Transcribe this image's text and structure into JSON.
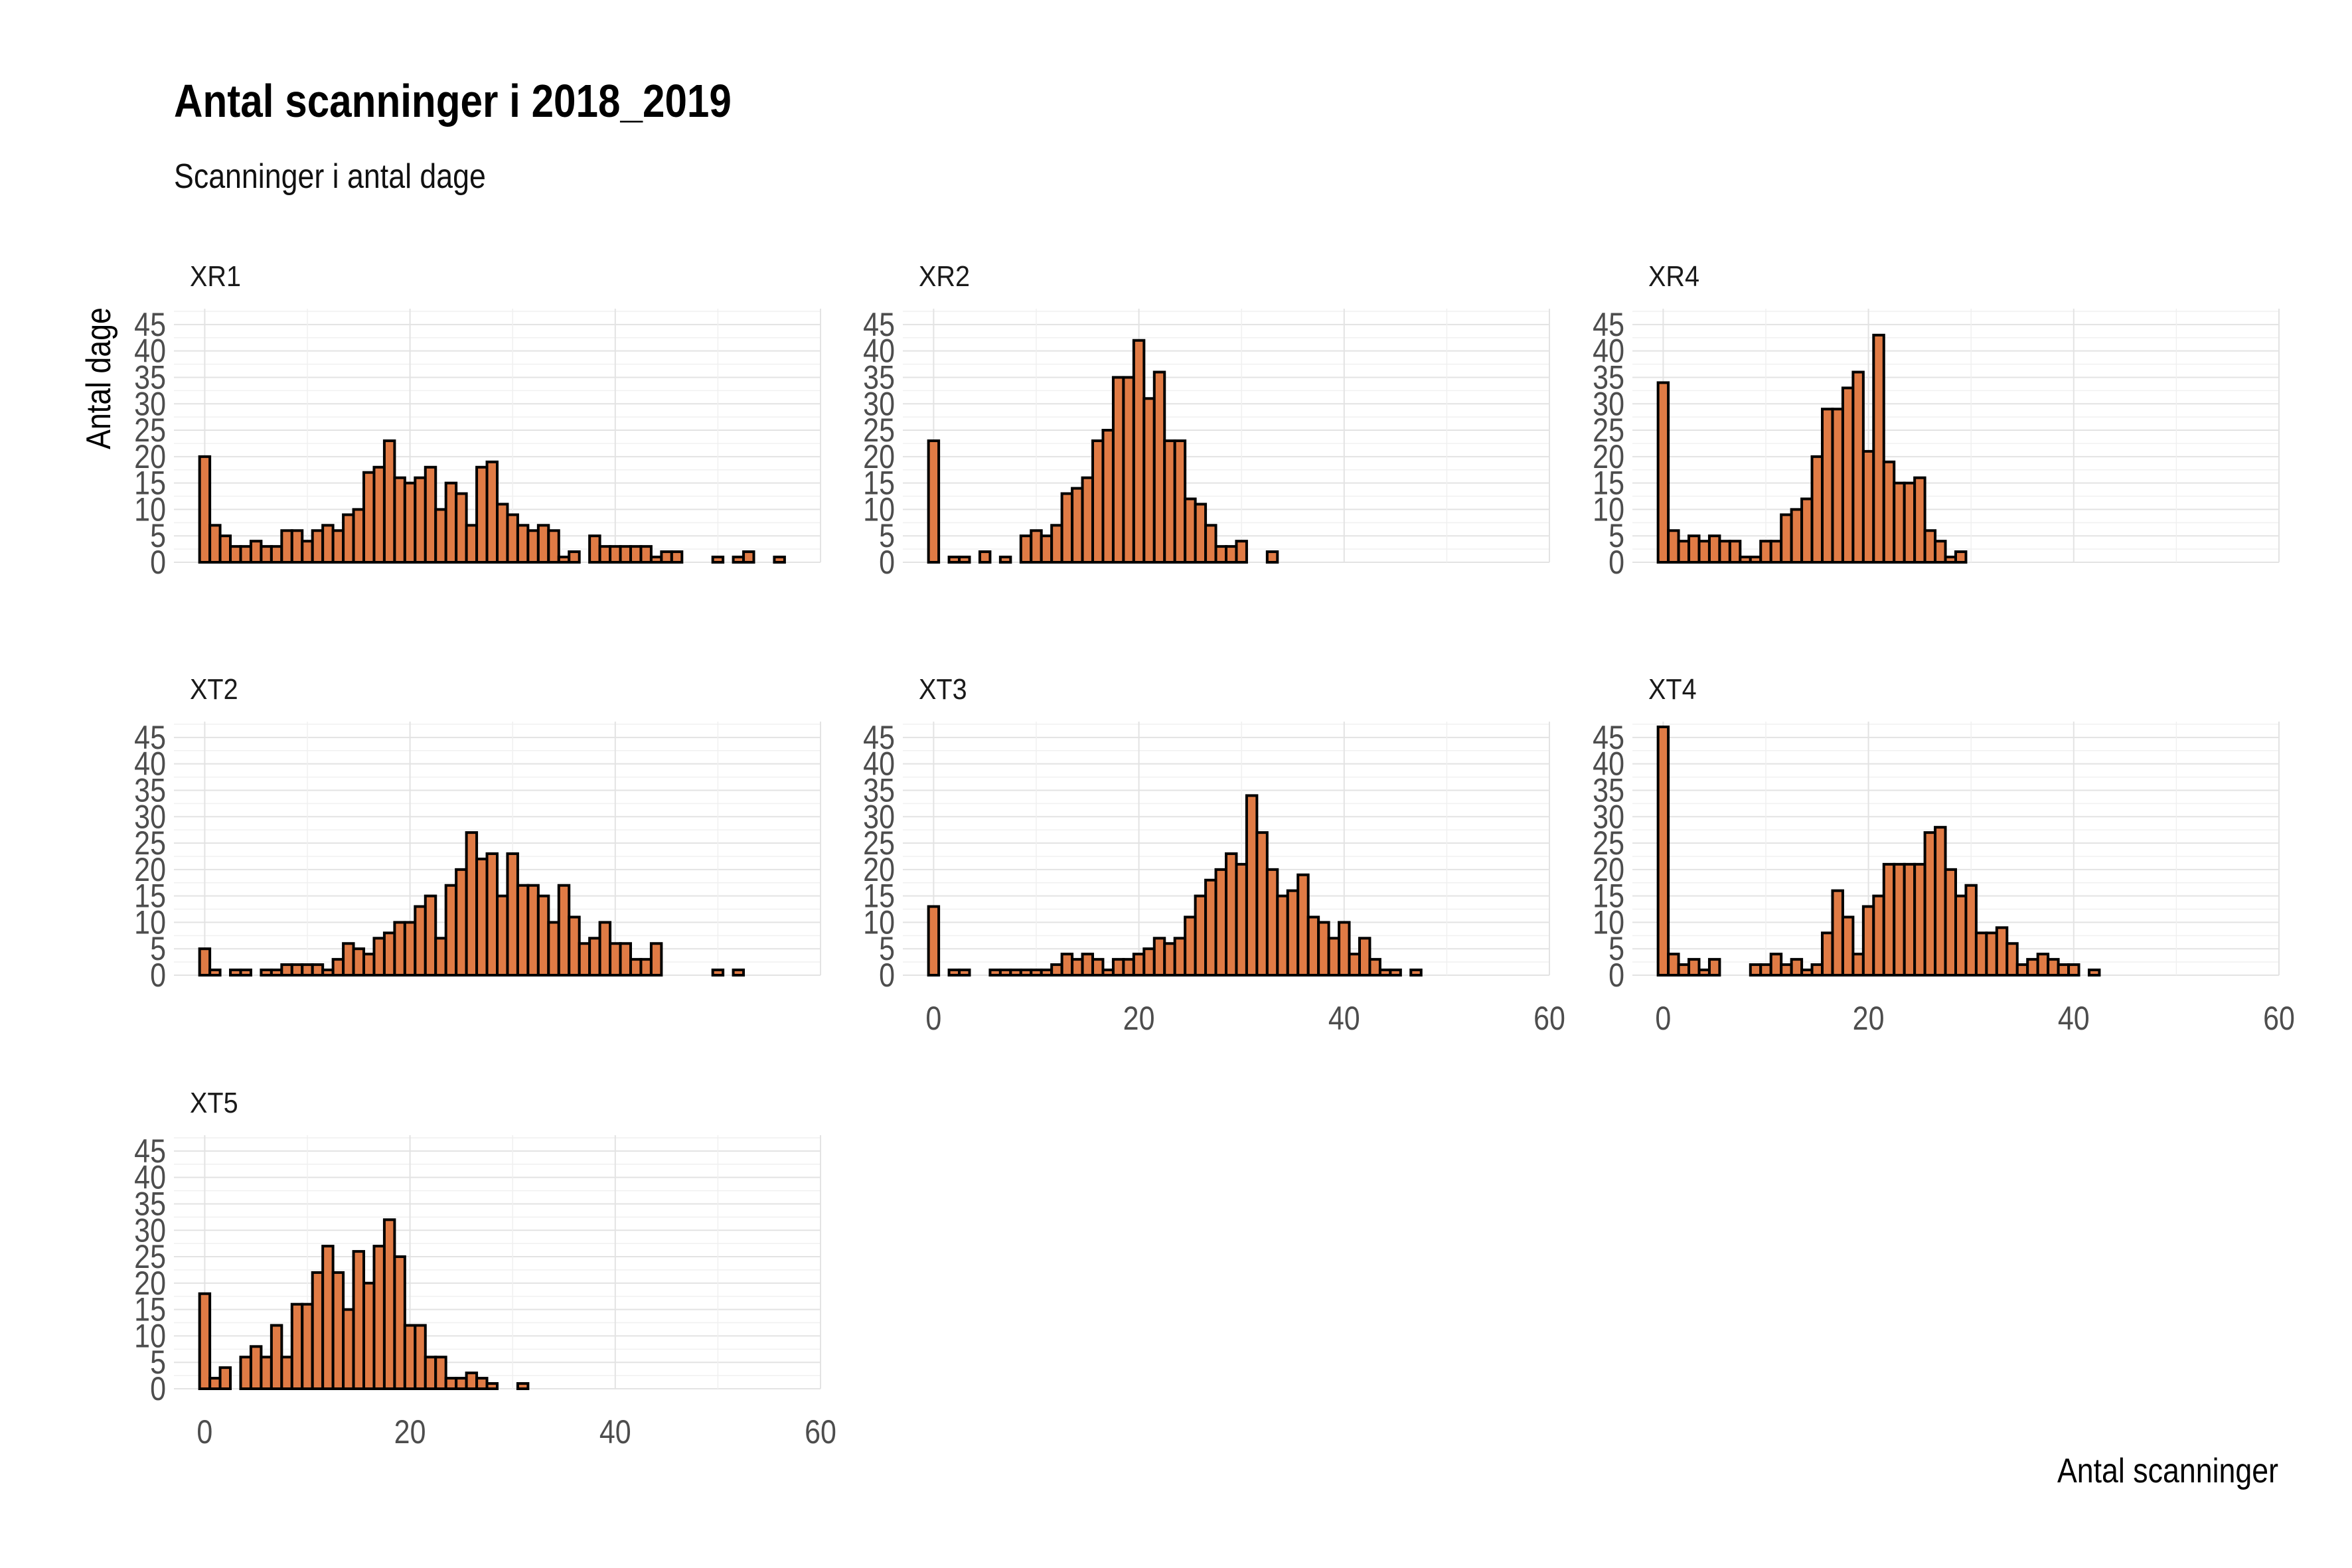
{
  "chart_data": {
    "type": "bar",
    "title": "Antal scanninger i 2018_2019",
    "subtitle": "Scanninger i antal dage",
    "xlabel": "Antal scanninger",
    "ylabel": "Antal dage",
    "xlim": [
      -3,
      60
    ],
    "ylim": [
      0,
      48
    ],
    "x_ticks": [
      0,
      20,
      40,
      60
    ],
    "y_ticks": [
      0,
      5,
      10,
      15,
      20,
      25,
      30,
      35,
      40,
      45
    ],
    "bin_width": 1,
    "grid": true,
    "bar_fill": "#E07B45",
    "bar_outline": "#000000",
    "facets": [
      {
        "name": "XR1",
        "counts": [
          20,
          7,
          5,
          3,
          3,
          4,
          3,
          3,
          6,
          6,
          4,
          6,
          7,
          6,
          9,
          10,
          17,
          18,
          23,
          16,
          15,
          16,
          18,
          10,
          15,
          13,
          7,
          18,
          19,
          11,
          9,
          7,
          6,
          7,
          6,
          1,
          2,
          0,
          5,
          3,
          3,
          3,
          3,
          3,
          1,
          2,
          2,
          0,
          0,
          0,
          1,
          0,
          1,
          2,
          0,
          0,
          1
        ]
      },
      {
        "name": "XR2",
        "counts": [
          23,
          0,
          1,
          1,
          0,
          2,
          0,
          1,
          0,
          5,
          6,
          5,
          7,
          13,
          14,
          16,
          23,
          25,
          35,
          35,
          42,
          31,
          36,
          23,
          23,
          12,
          11,
          7,
          3,
          3,
          4,
          0,
          0,
          2
        ]
      },
      {
        "name": "XR4",
        "counts": [
          34,
          6,
          4,
          5,
          4,
          5,
          4,
          4,
          1,
          1,
          4,
          4,
          9,
          10,
          12,
          20,
          29,
          29,
          33,
          36,
          21,
          43,
          19,
          15,
          15,
          16,
          6,
          4,
          1,
          2
        ]
      },
      {
        "name": "XT2",
        "counts": [
          5,
          1,
          0,
          1,
          1,
          0,
          1,
          1,
          2,
          2,
          2,
          2,
          1,
          3,
          6,
          5,
          4,
          7,
          8,
          10,
          10,
          13,
          15,
          7,
          17,
          20,
          27,
          22,
          23,
          15,
          23,
          17,
          17,
          15,
          10,
          17,
          11,
          6,
          7,
          10,
          6,
          6,
          3,
          3,
          6,
          0,
          0,
          0,
          0,
          0,
          1,
          0,
          1
        ]
      },
      {
        "name": "XT3",
        "counts": [
          13,
          0,
          1,
          1,
          0,
          0,
          1,
          1,
          1,
          1,
          1,
          1,
          2,
          4,
          3,
          4,
          3,
          1,
          3,
          3,
          4,
          5,
          7,
          6,
          7,
          11,
          15,
          18,
          20,
          23,
          21,
          34,
          27,
          20,
          15,
          16,
          19,
          11,
          10,
          7,
          10,
          4,
          7,
          3,
          1,
          1,
          0,
          1
        ]
      },
      {
        "name": "XT4",
        "counts": [
          47,
          4,
          2,
          3,
          1,
          3,
          0,
          0,
          0,
          2,
          2,
          4,
          2,
          3,
          1,
          2,
          8,
          16,
          11,
          4,
          13,
          15,
          21,
          21,
          21,
          21,
          27,
          28,
          20,
          15,
          17,
          8,
          8,
          9,
          6,
          2,
          3,
          4,
          3,
          2,
          2,
          0,
          1
        ]
      },
      {
        "name": "XT5",
        "counts": [
          18,
          2,
          4,
          0,
          6,
          8,
          6,
          12,
          6,
          16,
          16,
          22,
          27,
          22,
          15,
          26,
          20,
          27,
          32,
          25,
          12,
          12,
          6,
          6,
          2,
          2,
          3,
          2,
          1,
          0,
          0,
          1
        ]
      }
    ]
  }
}
